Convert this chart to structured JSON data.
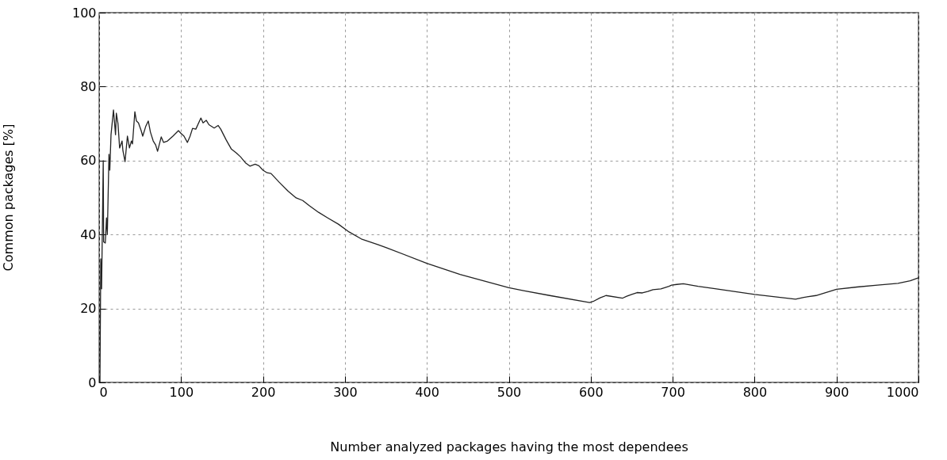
{
  "chart_data": {
    "type": "line",
    "xlabel": "Number analyzed packages having the most dependees",
    "ylabel": "Common packages [%]",
    "xlim": [
      0,
      1000
    ],
    "xticks": [
      0,
      100,
      200,
      300,
      400,
      500,
      600,
      700,
      800,
      900,
      1000
    ],
    "ylim": [
      0,
      100
    ],
    "yticks": [
      0,
      20,
      40,
      60,
      80,
      100
    ],
    "grid": true,
    "line_style": "solid",
    "marker": "none",
    "series": [
      {
        "color": "#222222",
        "x": [
          1,
          2,
          3,
          5,
          5.5,
          7.5,
          9,
          10,
          12,
          13,
          14.5,
          17.5,
          20,
          21,
          23,
          25,
          28,
          29,
          31.6,
          34.5,
          37,
          39.4,
          40.7,
          43.6,
          45.5,
          48,
          51.3,
          53.2,
          56.8,
          60,
          62.6,
          66,
          69,
          71.3,
          75.8,
          78.7,
          83.5,
          90,
          96.8,
          99.7,
          103.6,
          107.7,
          111,
          114,
          118,
          124.2,
          126.8,
          130.7,
          134,
          140.4,
          145.2,
          148.4,
          155,
          161.4,
          167.8,
          172.6,
          179,
          184,
          190.4,
          195,
          200,
          205,
          209.8,
          219.5,
          230.7,
          240.4,
          248.5,
          256.5,
          267.8,
          279,
          292,
          305,
          320,
          340,
          350,
          400,
          440.5,
          500,
          518,
          550,
          598.6,
          603,
          611.5,
          618.6,
          639,
          644,
          650,
          656.6,
          663,
          669.6,
          676,
          685.7,
          695.5,
          698.7,
          705,
          713,
          731,
          750,
          800,
          850,
          860,
          875,
          900,
          925,
          950,
          975,
          990,
          1000
        ],
        "values": [
          0,
          33.4,
          25.3,
          60,
          38,
          37.7,
          44.5,
          40,
          61.7,
          57.4,
          67,
          73.7,
          67,
          72.8,
          70,
          63.4,
          65.3,
          62.7,
          59.7,
          66.6,
          63.4,
          65.3,
          64.5,
          73.2,
          70.7,
          70.2,
          68.1,
          66.6,
          69.2,
          70.7,
          67.7,
          65.3,
          64.2,
          62.5,
          66.4,
          64.9,
          65.3,
          66.6,
          68.1,
          67.4,
          66.6,
          64.9,
          66.6,
          68.7,
          68.5,
          71.5,
          70.2,
          70.9,
          69.7,
          68.8,
          69.5,
          68.5,
          65.6,
          63.1,
          62,
          61,
          59.3,
          58.5,
          59,
          58.6,
          57.4,
          56.7,
          56.5,
          54.2,
          51.7,
          49.9,
          49.2,
          47.8,
          46,
          44.5,
          42.8,
          40.7,
          38.8,
          37.3,
          36.5,
          32.2,
          29.2,
          25.6,
          24.8,
          23.5,
          21.6,
          21.9,
          22.9,
          23.5,
          22.8,
          23.3,
          23.8,
          24.3,
          24.2,
          24.6,
          25.1,
          25.3,
          26,
          26.3,
          26.5,
          26.7,
          26,
          25.4,
          23.8,
          22.5,
          23,
          23.5,
          25.2,
          25.8,
          26.3,
          26.8,
          27.5,
          28.3
        ]
      }
    ]
  }
}
